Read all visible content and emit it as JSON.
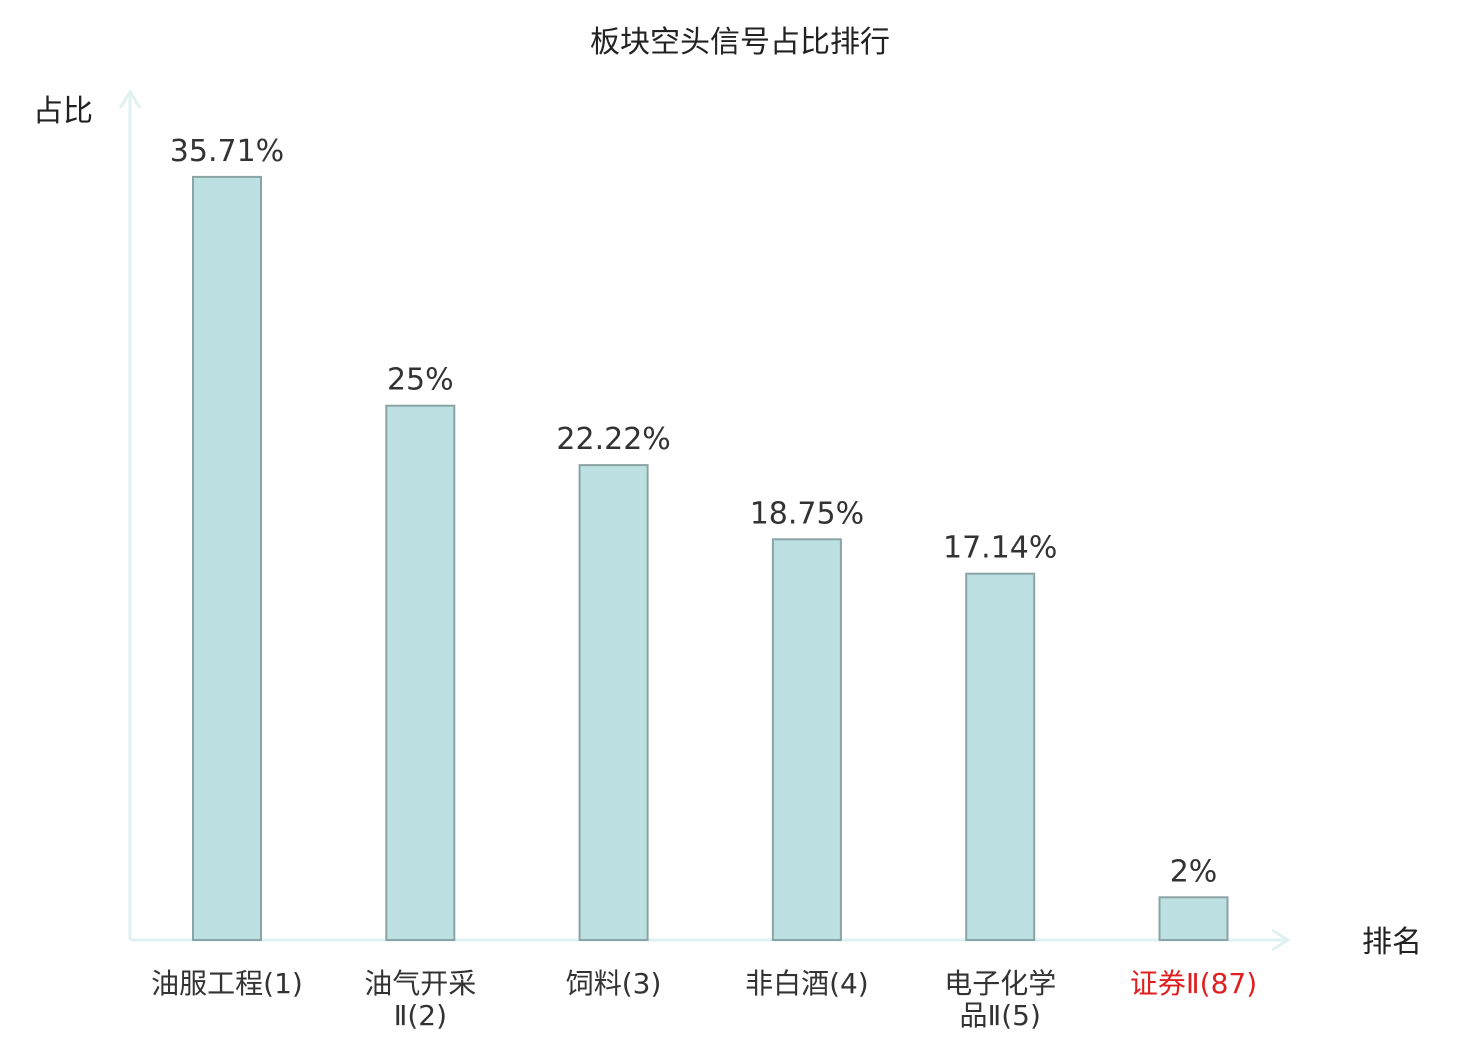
{
  "chart_data": {
    "type": "bar",
    "title": "板块空头信号占比排行",
    "xlabel": "排名",
    "ylabel": "占比",
    "categories": [
      [
        "油服工程(1)"
      ],
      [
        "油气开采",
        "Ⅱ(2)"
      ],
      [
        "饲料(3)"
      ],
      [
        "非白酒(4)"
      ],
      [
        "电子化学",
        "品Ⅱ(5)"
      ],
      [
        "证券Ⅱ(87)"
      ]
    ],
    "values": [
      35.71,
      25,
      22.22,
      18.75,
      17.14,
      2
    ],
    "value_labels": [
      "35.71%",
      "25%",
      "22.22%",
      "18.75%",
      "17.14%",
      "2%"
    ],
    "highlight_index": 5,
    "ylim": [
      0,
      39.4
    ],
    "grid": false,
    "legend": "none",
    "colors": {
      "bar_fill": "#bde0e3",
      "bar_stroke": "#8aa4a6",
      "axis": "#dff1f0",
      "category_text": "#333333",
      "highlight_text": "#e02020"
    }
  }
}
